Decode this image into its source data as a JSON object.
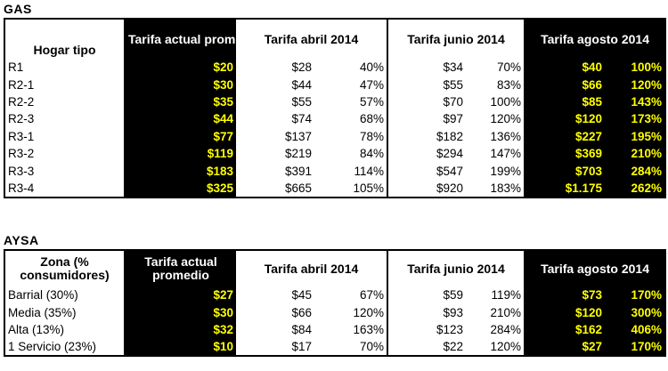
{
  "gas": {
    "title": "GAS",
    "headers": {
      "label": "Hogar tipo",
      "current": "Tarifa actual promedio",
      "april": "Tarifa abril 2014",
      "june": "Tarifa junio 2014",
      "august": "Tarifa agosto 2014"
    },
    "rows": [
      {
        "label": "R1",
        "current": "$20",
        "april": "$28",
        "april_pct": "40%",
        "june": "$34",
        "june_pct": "70%",
        "august": "$40",
        "august_pct": "100%"
      },
      {
        "label": "R2-1",
        "current": "$30",
        "april": "$44",
        "april_pct": "47%",
        "june": "$55",
        "june_pct": "83%",
        "august": "$66",
        "august_pct": "120%"
      },
      {
        "label": "R2-2",
        "current": "$35",
        "april": "$55",
        "april_pct": "57%",
        "june": "$70",
        "june_pct": "100%",
        "august": "$85",
        "august_pct": "143%"
      },
      {
        "label": "R2-3",
        "current": "$44",
        "april": "$74",
        "april_pct": "68%",
        "june": "$97",
        "june_pct": "120%",
        "august": "$120",
        "august_pct": "173%"
      },
      {
        "label": "R3-1",
        "current": "$77",
        "april": "$137",
        "april_pct": "78%",
        "june": "$182",
        "june_pct": "136%",
        "august": "$227",
        "august_pct": "195%"
      },
      {
        "label": "R3-2",
        "current": "$119",
        "april": "$219",
        "april_pct": "84%",
        "june": "$294",
        "june_pct": "147%",
        "august": "$369",
        "august_pct": "210%"
      },
      {
        "label": "R3-3",
        "current": "$183",
        "april": "$391",
        "april_pct": "114%",
        "june": "$547",
        "june_pct": "199%",
        "august": "$703",
        "august_pct": "284%"
      },
      {
        "label": "R3-4",
        "current": "$325",
        "april": "$665",
        "april_pct": "105%",
        "june": "$920",
        "june_pct": "183%",
        "august": "$1.175",
        "august_pct": "262%"
      }
    ]
  },
  "aysa": {
    "title": "AYSA",
    "headers": {
      "label": "Zona (% consumidores)",
      "current": "Tarifa actual promedio",
      "april": "Tarifa abril 2014",
      "june": "Tarifa junio 2014",
      "august": "Tarifa agosto 2014"
    },
    "rows": [
      {
        "label": "Barrial (30%)",
        "current": "$27",
        "april": "$45",
        "april_pct": "67%",
        "june": "$59",
        "june_pct": "119%",
        "august": "$73",
        "august_pct": "170%"
      },
      {
        "label": "Media (35%)",
        "current": "$30",
        "april": "$66",
        "april_pct": "120%",
        "june": "$93",
        "june_pct": "210%",
        "august": "$120",
        "august_pct": "300%"
      },
      {
        "label": "Alta (13%)",
        "current": "$32",
        "april": "$84",
        "april_pct": "163%",
        "june": "$123",
        "june_pct": "284%",
        "august": "$162",
        "august_pct": "406%"
      },
      {
        "label": "1 Servicio (23%)",
        "current": "$10",
        "april": "$17",
        "april_pct": "70%",
        "june": "$22",
        "june_pct": "120%",
        "august": "$27",
        "august_pct": "170%"
      }
    ]
  }
}
